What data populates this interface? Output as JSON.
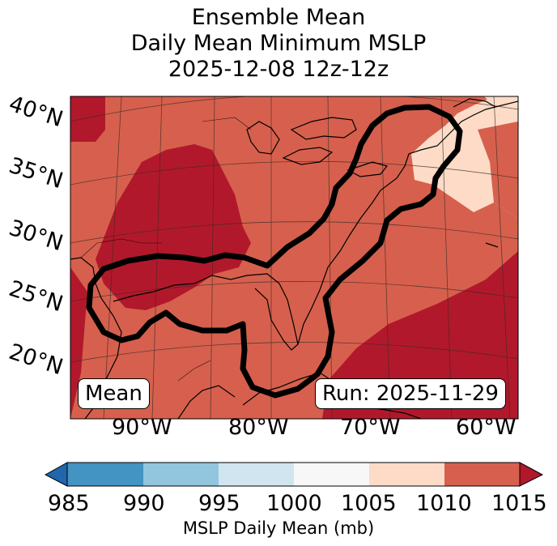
{
  "title": {
    "line1": "Ensemble Mean",
    "line2": "Daily Mean Minimum MSLP",
    "line3": "2025-12-08 12z-12z"
  },
  "map": {
    "lat_labels": [
      "40°N",
      "35°N",
      "30°N",
      "25°N",
      "20°N"
    ],
    "lon_labels": [
      "90°W",
      "80°W",
      "70°W",
      "60°W"
    ],
    "label_mean": "Mean",
    "label_run": "Run: 2025-11-29",
    "outline_color": "#000000"
  },
  "colorbar": {
    "label": "MSLP Daily Mean (mb)",
    "ticks": [
      "985",
      "990",
      "995",
      "1000",
      "1005",
      "1010",
      "1015"
    ],
    "colors": [
      "#2166ac",
      "#4393c3",
      "#92c5de",
      "#d1e5f0",
      "#f7f7f7",
      "#fddbc7",
      "#d6604d",
      "#b2182b"
    ]
  }
}
